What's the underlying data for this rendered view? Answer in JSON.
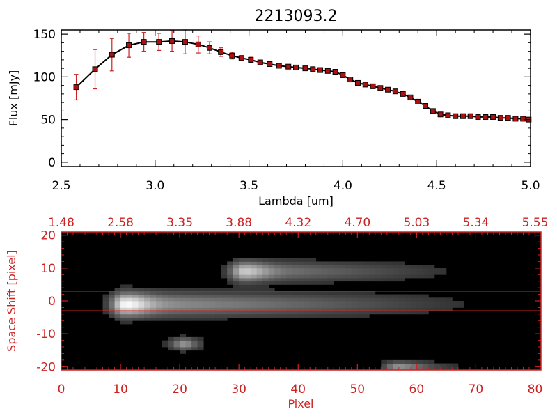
{
  "chart_data": [
    {
      "type": "line",
      "title": "2213093.2",
      "xlabel": "Lambda [um]",
      "ylabel": "Flux [mJy]",
      "xlim": [
        2.5,
        5.0
      ],
      "ylim": [
        -5,
        155
      ],
      "x_ticks": [
        "2.5",
        "3.0",
        "3.5",
        "4.0",
        "4.5",
        "5.0"
      ],
      "y_ticks": [
        "0",
        "50",
        "100",
        "150"
      ],
      "line_color": "#000000",
      "marker_color": "#aa1111",
      "errorbar_color": "#cc2222",
      "grid": false,
      "series": [
        {
          "x": [
            2.58,
            2.68,
            2.77,
            2.86,
            2.94,
            3.02,
            3.09,
            3.16,
            3.23,
            3.29,
            3.35,
            3.41,
            3.46,
            3.51,
            3.56,
            3.61,
            3.66,
            3.71,
            3.75,
            3.8,
            3.84,
            3.88,
            3.92,
            3.96,
            4.0,
            4.04,
            4.08,
            4.12,
            4.16,
            4.2,
            4.24,
            4.28,
            4.32,
            4.36,
            4.4,
            4.44,
            4.48,
            4.52,
            4.56,
            4.6,
            4.64,
            4.68,
            4.72,
            4.76,
            4.8,
            4.84,
            4.88,
            4.92,
            4.96,
            4.99
          ],
          "y": [
            88,
            109,
            126,
            137,
            141,
            141,
            142,
            141,
            138,
            134,
            129,
            125,
            122,
            120,
            117,
            115,
            113,
            112,
            111,
            110,
            109,
            108,
            107,
            106,
            102,
            97,
            93,
            91,
            89,
            87,
            85,
            83,
            80,
            76,
            71,
            66,
            60,
            56,
            55,
            54,
            54,
            54,
            53,
            53,
            53,
            52,
            52,
            51,
            51,
            50
          ],
          "yerr": [
            15,
            23,
            19,
            14,
            11,
            10,
            12,
            14,
            10,
            7,
            5,
            4,
            3,
            3,
            2,
            2,
            2,
            2,
            2,
            2,
            2,
            2,
            2,
            2,
            2,
            2,
            2,
            2,
            2,
            2,
            2,
            2,
            2,
            2,
            2,
            2,
            2,
            2,
            2,
            2,
            2,
            2,
            2,
            2,
            2,
            2,
            2,
            2,
            2,
            2
          ]
        }
      ]
    },
    {
      "type": "heatmap",
      "xlabel": "Pixel",
      "ylabel": "Space Shift [pixel]",
      "xlim": [
        0,
        81
      ],
      "ylim": [
        -21,
        21
      ],
      "x_ticks": [
        "0",
        "10",
        "20",
        "30",
        "40",
        "50",
        "60",
        "70",
        "80"
      ],
      "y_ticks": [
        "-20",
        "-10",
        "0",
        "10",
        "20"
      ],
      "top_ticks": [
        "1.48",
        "2.58",
        "3.35",
        "3.88",
        "4.32",
        "4.70",
        "5.03",
        "5.34",
        "5.55"
      ],
      "axis_color": "#cc2222",
      "colormap": "gray",
      "extraction_lines": [
        3,
        -3
      ],
      "components": [
        {
          "x0": 8,
          "x1": 76,
          "y": -1,
          "peak_x": 11,
          "peak": 1.0,
          "width": 3.4
        },
        {
          "x0": 25,
          "x1": 72,
          "y": 9,
          "peak_x": 31,
          "peak": 0.78,
          "width": 2.9
        },
        {
          "x0": 19,
          "x1": 23,
          "y": -13,
          "peak_x": 21,
          "peak": 0.55,
          "width": 1.8
        },
        {
          "x0": 52,
          "x1": 70,
          "y": -20,
          "peak_x": 57,
          "peak": 0.55,
          "width": 1.5
        }
      ]
    }
  ]
}
